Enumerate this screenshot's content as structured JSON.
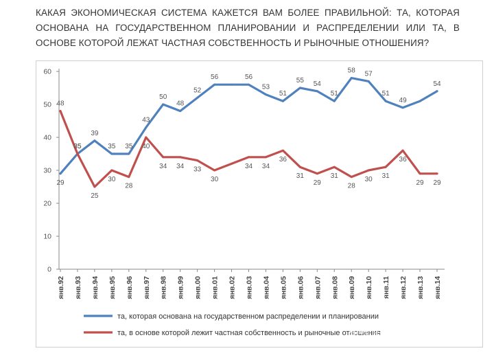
{
  "question": "КАКАЯ ЭКОНОМИЧЕСКАЯ СИСТЕМА КАЖЕТСЯ ВАМ БОЛЕЕ ПРАВИЛЬНОЙ: ТА, КОТОРАЯ ОСНОВАНА НА ГОСУДАРСТВЕННОМ ПЛАНИРОВАНИИ И РАСПРЕДЕЛЕНИИ ИЛИ ТА, В ОСНОВЕ КОТОРОЙ ЛЕЖАТ ЧАСТНАЯ СОБСТВЕННОСТЬ И РЫНОЧНЫЕ ОТНОШЕНИЯ?",
  "watermark": "知乎 @公社记录委员",
  "chart_data": {
    "type": "line",
    "categories": [
      "янв.92",
      "янв.93",
      "янв.94",
      "янв.95",
      "янв.96",
      "янв.97",
      "янв.98",
      "янв.99",
      "янв.00",
      "янв.01",
      "янв.02",
      "янв.03",
      "янв.04",
      "янв.05",
      "янв.06",
      "янв.07",
      "янв.08",
      "янв.09",
      "янв.10",
      "янв.11",
      "янв.12",
      "янв.13",
      "янв.14"
    ],
    "ylim": [
      0,
      60
    ],
    "yticks": [
      0,
      10,
      20,
      30,
      40,
      50,
      60
    ],
    "series": [
      {
        "name": "та, которая основана на государственном распределении и планировании",
        "color": "#4f81bd",
        "points": [
          {
            "x": "янв.92",
            "y": 29,
            "label": "29"
          },
          {
            "x": "янв.93",
            "y": 35,
            "label": "35"
          },
          {
            "x": "янв.94",
            "y": 39,
            "label": "39"
          },
          {
            "x": "янв.95",
            "y": 35,
            "label": "35"
          },
          {
            "x": "янв.96",
            "y": 35,
            "label": "35"
          },
          {
            "x": "янв.97",
            "y": 43,
            "label": "43"
          },
          {
            "x": "янв.98",
            "y": 50,
            "label": "50"
          },
          {
            "x": "янв.99",
            "y": 48,
            "label": "48"
          },
          {
            "x": "янв.00",
            "y": 52,
            "label": "52"
          },
          {
            "x": "янв.01",
            "y": 56,
            "label": "56"
          },
          {
            "x": "янв.02",
            "y": 56,
            "label": ""
          },
          {
            "x": "янв.03",
            "y": 56,
            "label": "56"
          },
          {
            "x": "янв.04",
            "y": 53,
            "label": "53"
          },
          {
            "x": "янв.05",
            "y": 51,
            "label": "51"
          },
          {
            "x": "янв.06",
            "y": 55,
            "label": "55"
          },
          {
            "x": "янв.07",
            "y": 54,
            "label": "54"
          },
          {
            "x": "янв.08",
            "y": 51,
            "label": "51"
          },
          {
            "x": "янв.09",
            "y": 58,
            "label": "58"
          },
          {
            "x": "янв.10",
            "y": 57,
            "label": "57"
          },
          {
            "x": "янв.11",
            "y": 51,
            "label": "51"
          },
          {
            "x": "янв.12",
            "y": 49,
            "label": "49"
          },
          {
            "x": "янв.13",
            "y": 51,
            "label": ""
          },
          {
            "x": "янв.14",
            "y": 54,
            "label": "54"
          }
        ]
      },
      {
        "name": "та, в основе которой лежит частная собственность и рыночные отношения",
        "color": "#c0504d",
        "points": [
          {
            "x": "янв.92",
            "y": 48,
            "label": "48"
          },
          {
            "x": "янв.93",
            "y": 35,
            "label": "35"
          },
          {
            "x": "янв.94",
            "y": 25,
            "label": "25"
          },
          {
            "x": "янв.95",
            "y": 30,
            "label": "30"
          },
          {
            "x": "янв.96",
            "y": 28,
            "label": "28"
          },
          {
            "x": "янв.97",
            "y": 40,
            "label": "40"
          },
          {
            "x": "янв.98",
            "y": 34,
            "label": "34"
          },
          {
            "x": "янв.99",
            "y": 34,
            "label": "34"
          },
          {
            "x": "янв.00",
            "y": 33,
            "label": "33"
          },
          {
            "x": "янв.01",
            "y": 30,
            "label": "30"
          },
          {
            "x": "янв.02",
            "y": 32,
            "label": ""
          },
          {
            "x": "янв.03",
            "y": 34,
            "label": "34"
          },
          {
            "x": "янв.04",
            "y": 34,
            "label": "34"
          },
          {
            "x": "янв.05",
            "y": 36,
            "label": "36"
          },
          {
            "x": "янв.06",
            "y": 31,
            "label": "31"
          },
          {
            "x": "янв.07",
            "y": 29,
            "label": "29"
          },
          {
            "x": "янв.08",
            "y": 31,
            "label": "31"
          },
          {
            "x": "янв.09",
            "y": 28,
            "label": "28"
          },
          {
            "x": "янв.10",
            "y": 30,
            "label": "30"
          },
          {
            "x": "янв.11",
            "y": 31,
            "label": "31"
          },
          {
            "x": "янв.12",
            "y": 36,
            "label": "36"
          },
          {
            "x": "янв.13",
            "y": 29,
            "label": "29"
          },
          {
            "x": "янв.14",
            "y": 29,
            "label": "29"
          }
        ]
      }
    ],
    "grid": false,
    "legend": "bottom"
  }
}
